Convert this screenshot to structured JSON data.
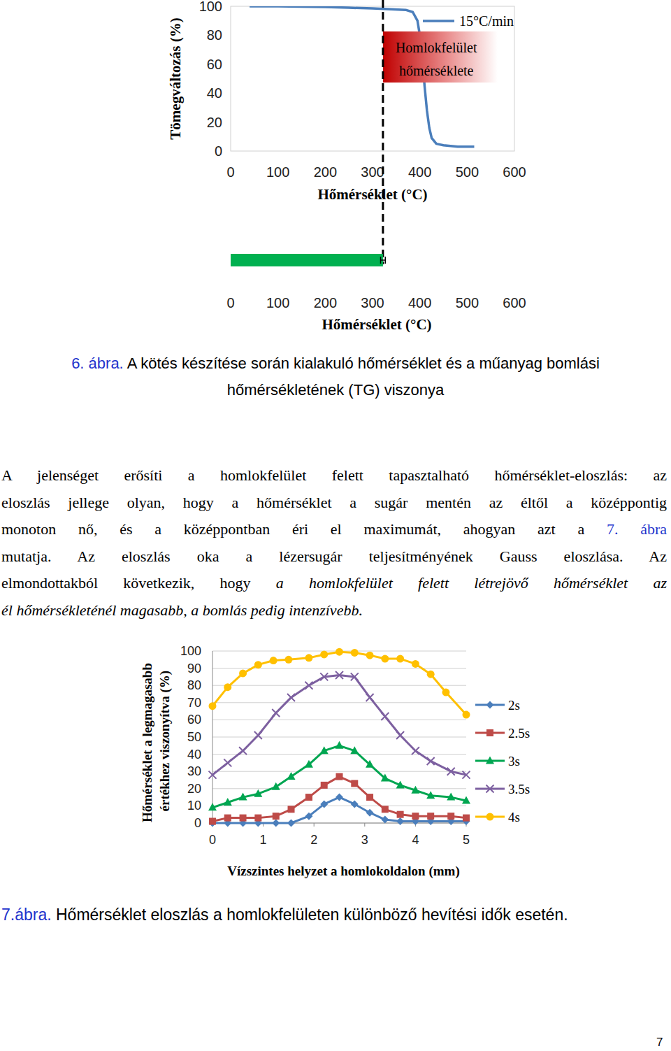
{
  "document": {
    "figure6_caption": {
      "label": "6. ábra.",
      "lines": [
        "A kötés készítése során kialakuló hőmérséklet és a műanyag bomlási",
        "hőmérsékletének (TG) viszonya"
      ]
    },
    "paragraph": {
      "lines": [
        [
          {
            "text": "A jelenséget erősíti a homlokfelület felett tapasztalható hőmérséklet-eloszlás: az"
          }
        ],
        [
          {
            "text": "eloszlás jellege olyan, hogy a hőmérséklet a sugár mentén az éltől a középpontig"
          }
        ],
        [
          {
            "text": "monoton nő, és a középpontban éri el maximumát, ahogyan azt a "
          },
          {
            "text": "7. ábra",
            "style": "link"
          }
        ],
        [
          {
            "text": "mutatja. Az eloszlás oka a lézersugár teljesítményének Gauss eloszlása. Az"
          }
        ],
        [
          {
            "text": "elmondottakból következik, hogy "
          },
          {
            "text": "a homlokfelület felett létrejövő hőmérséklet az",
            "style": "italic"
          }
        ],
        [
          {
            "text": "él hőmérsékleténél magasabb, a bomlás pedig intenzívebb.",
            "style": "italic"
          }
        ]
      ]
    },
    "figure7_caption": {
      "label": "7.ábra.",
      "text": " Hőmérséklet eloszlás a homlokfelületen különböző hevítési idők esetén."
    },
    "page_number": "7"
  },
  "chart_data": [
    {
      "type": "line",
      "x_label": "Hőmérséklet (°C)",
      "y_label": "Tömegváltozás (%)",
      "xlim": [
        0,
        600
      ],
      "xticks": [
        0,
        100,
        200,
        300,
        400,
        500,
        600
      ],
      "ylim": [
        0,
        100
      ],
      "yticks": [
        0,
        20,
        40,
        60,
        80,
        100
      ],
      "grid": false,
      "legend": "upper right",
      "series": [
        {
          "name": "15°C/min",
          "color": "#4a7ebb",
          "marker": "none",
          "x": [
            40,
            100,
            150,
            200,
            250,
            300,
            340,
            370,
            385,
            395,
            400,
            405,
            410,
            415,
            420,
            425,
            435,
            450,
            480,
            515
          ],
          "values": [
            100,
            100,
            99.8,
            99.5,
            99,
            98.5,
            98,
            97.5,
            96,
            90,
            80,
            65,
            45,
            28,
            16,
            9,
            5,
            4,
            3,
            3
          ]
        }
      ],
      "annotations": [
        {
          "text": "Homlokfelület hőmérséklete",
          "x": 322
        }
      ]
    },
    {
      "type": "bar",
      "orientation": "horizontal",
      "x_label": "Hőmérséklet (°C)",
      "xlim": [
        0,
        600
      ],
      "xticks": [
        0,
        100,
        200,
        300,
        400,
        500,
        600
      ],
      "tick_labels": "x",
      "categories": [
        null
      ],
      "values": [
        322
      ],
      "errors": [
        5
      ],
      "color": "#00b050"
    },
    {
      "type": "line",
      "x_label": "Vízszintes helyzet a homlokoldalon (mm)",
      "y_label": "Hőmérséklet a legmagasabb értékhez viszonyítva (%)",
      "xlim": [
        0,
        5
      ],
      "xticks": [
        0,
        1,
        2,
        3,
        4,
        5
      ],
      "ylim": [
        0,
        100
      ],
      "yticks": [
        0,
        10,
        20,
        30,
        40,
        50,
        60,
        70,
        80,
        90,
        100
      ],
      "grid": true,
      "legend": "right",
      "series": [
        {
          "name": "2s",
          "color": "#4a7ebb",
          "marker": "diamond",
          "x": [
            0,
            0.3,
            0.6,
            0.9,
            1.25,
            1.55,
            1.9,
            2.2,
            2.5,
            2.8,
            3.1,
            3.4,
            3.7,
            4,
            4.3,
            4.7,
            5
          ],
          "values": [
            0,
            0,
            0,
            0,
            0,
            0,
            4,
            11,
            15,
            11,
            6,
            2,
            1,
            1,
            1,
            1,
            1
          ]
        },
        {
          "name": "2.5s",
          "color": "#be4b48",
          "marker": "square",
          "x": [
            0,
            0.3,
            0.6,
            0.9,
            1.25,
            1.55,
            1.9,
            2.2,
            2.5,
            2.8,
            3.1,
            3.4,
            3.7,
            4,
            4.3,
            4.7,
            5
          ],
          "values": [
            1,
            3,
            3,
            3,
            4,
            8,
            15,
            22,
            27,
            23,
            15,
            8,
            5,
            4,
            4,
            4,
            3
          ]
        },
        {
          "name": "3s",
          "color": "#00a651",
          "marker": "triangle",
          "x": [
            0,
            0.3,
            0.6,
            0.9,
            1.25,
            1.55,
            1.9,
            2.2,
            2.5,
            2.8,
            3.1,
            3.4,
            3.7,
            4,
            4.3,
            4.7,
            5
          ],
          "values": [
            9,
            12,
            15,
            17,
            21,
            27,
            34,
            42,
            45,
            42,
            34,
            26,
            22,
            19,
            16,
            15,
            13
          ]
        },
        {
          "name": "3.5s",
          "color": "#7d60a0",
          "marker": "x",
          "x": [
            0,
            0.3,
            0.6,
            0.9,
            1.25,
            1.55,
            1.9,
            2.2,
            2.5,
            2.8,
            3.1,
            3.4,
            3.7,
            4,
            4.3,
            4.7,
            5
          ],
          "values": [
            28,
            35,
            42,
            51,
            64,
            73,
            80,
            85,
            86,
            85,
            73,
            62,
            51,
            42,
            36,
            30,
            28
          ]
        },
        {
          "name": "4s",
          "color": "#ffc000",
          "marker": "circle",
          "x": [
            0,
            0.3,
            0.6,
            0.9,
            1.2,
            1.5,
            1.9,
            2.2,
            2.5,
            2.8,
            3.1,
            3.4,
            3.7,
            4,
            4.3,
            4.6,
            5
          ],
          "values": [
            68,
            79,
            87,
            92,
            94.5,
            95,
            96,
            98,
            99.5,
            99,
            97.5,
            95.5,
            95.5,
            92.5,
            86.5,
            76,
            63
          ]
        }
      ]
    }
  ]
}
